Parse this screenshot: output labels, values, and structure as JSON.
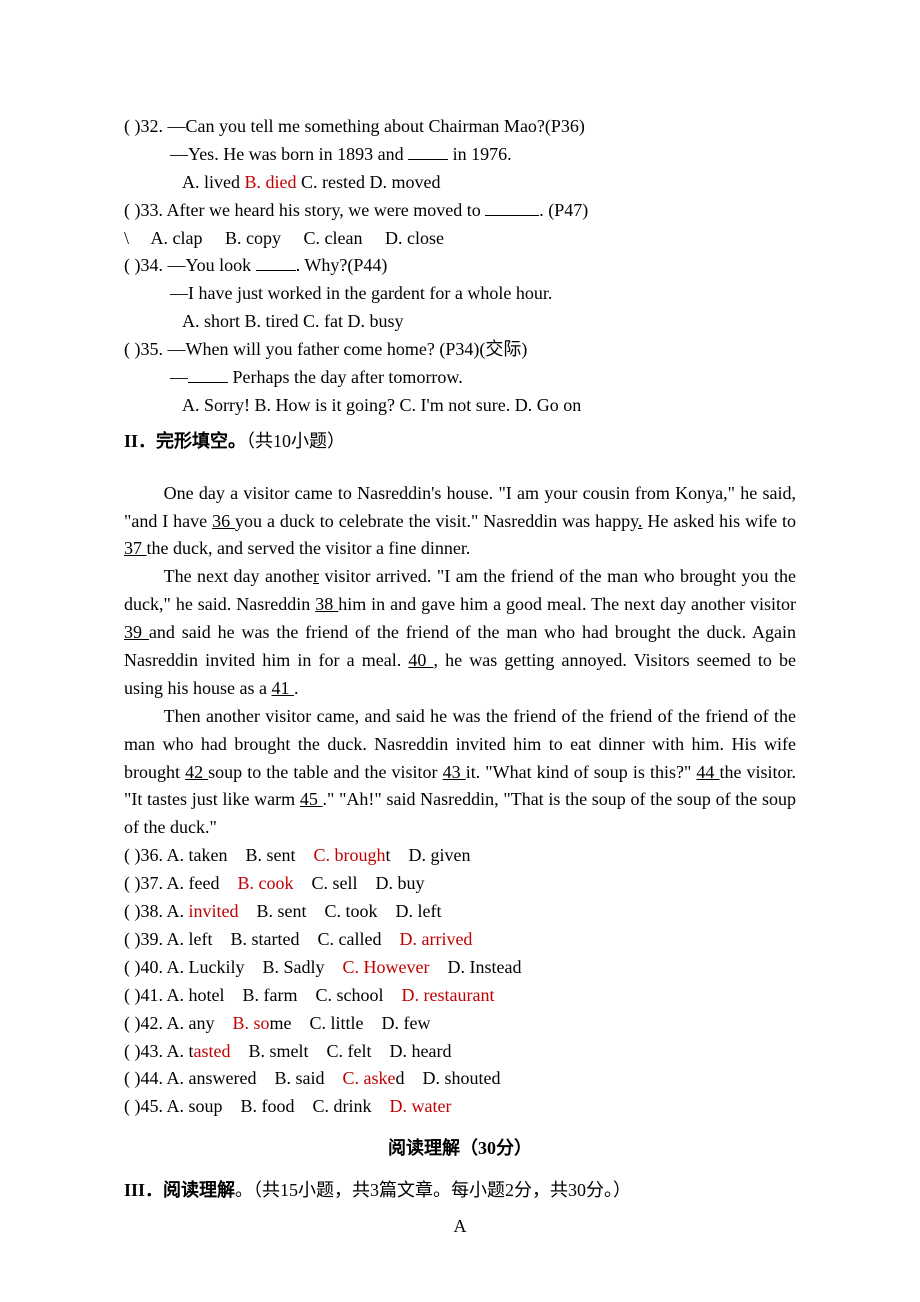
{
  "colors": {
    "text": "#000000",
    "answer": "#c00000",
    "background": "#ffffff"
  },
  "typography": {
    "body_font": "Times New Roman",
    "cjk_font": "SimSun",
    "body_size_pt": 13,
    "line_height": 1.55
  },
  "questions_block1": {
    "q32": {
      "prompt_line1": "(   )32. —Can you tell me something about Chairman Mao?(P36)",
      "prompt_line2_pre": "—Yes. He was born in 1893 and ",
      "prompt_line2_post": " in 1976.",
      "options": [
        {
          "label": "A. lived",
          "is_answer": false
        },
        {
          "label": "B. died",
          "is_answer": true
        },
        {
          "label": "C. rested",
          "is_answer": false
        },
        {
          "label": "D. moved",
          "is_answer": false
        }
      ]
    },
    "q33": {
      "prompt_pre": "(   )33. After we heard his story, we were moved to ",
      "prompt_post": ". (P47)",
      "prefix_ch": "\\",
      "options": [
        {
          "label": "A. clap",
          "is_answer": false
        },
        {
          "label": "B. copy",
          "is_answer": false
        },
        {
          "label": "C. clean",
          "is_answer": false
        },
        {
          "label": "D. close",
          "is_answer": false
        }
      ]
    },
    "q34": {
      "prompt_line1_pre": "(   )34. —You look ",
      "prompt_line1_post": ". Why?(P44)",
      "prompt_line2": "—I have just worked in the gardent for a whole hour.",
      "options": [
        {
          "label": "A. short",
          "is_answer": false
        },
        {
          "label": "B. tired",
          "is_answer": false
        },
        {
          "label": "C. fat",
          "is_answer": false
        },
        {
          "label": "D. busy",
          "is_answer": false
        }
      ]
    },
    "q35": {
      "prompt_line1": "(   )35. —When will you father come home? (P34)(交际)",
      "prompt_line2_pre": "—",
      "prompt_line2_post": " Perhaps the day after tomorrow.",
      "options": [
        {
          "label": "A. Sorry!",
          "is_answer": false
        },
        {
          "label": "B. How is it going?",
          "is_answer": false
        },
        {
          "label": "C. I'm not sure.",
          "is_answer": false
        },
        {
          "label": "D. Go on",
          "is_answer": false
        }
      ]
    }
  },
  "section2_title": "II．完形填空。",
  "section2_sub": "（共10小题）",
  "passage": {
    "p1_a": "One day a visitor came to Nasreddin's house. \"I am your cousin from Konya,\" he said, \"and I have ",
    "b36": " 36 ",
    "p1_b": " you a duck to celebrate the visit.\" Nasreddin was happy",
    "p1_c": " He asked his wife to ",
    "b37": " 37 ",
    "p1_d": " the duck, and served the visitor a fine dinner.",
    "p2_a": "The next day anothe",
    "p2_a2": " visitor arrived. \"I am the friend of the man who brought you the duck,\" he said. Nasreddin ",
    "b38": " 38 ",
    "p2_b": " him in and gave him a good meal. The next day another visitor ",
    "b39": " 39 ",
    "p2_c": " and said he was the friend of the friend of the man who had brought the duck. Again Nasreddin invited him in for a meal. ",
    "b40": " 40 ",
    "p2_d": ", he was getting annoyed. Visitors seemed to be using his house as a ",
    "b41": " 41 ",
    "p2_e": ".",
    "p3_a": "Then another visitor came, and said he was the friend of the friend of the friend of the man who had brought the duck. Nasreddin invited him to eat dinner with him. His wife brought ",
    "b42": " 42 ",
    "p3_b": " soup to the table and the visitor ",
    "b43": " 43 ",
    "p3_c": " it. \"What kind of soup is this?\" ",
    "b44": " 44 ",
    "p3_d": " the visitor. \"It tastes just like warm ",
    "b45": " 45 ",
    "p3_e": ".\" \"Ah!\" said Nasreddin, \"That is the soup of the soup of the soup of the duck.\""
  },
  "cloze_options": [
    {
      "num": "36",
      "A": "A. taken",
      "B": "B. sent",
      "C": "C. brough",
      "Ct": "t",
      "D": "D. given",
      "ans_letter": "C"
    },
    {
      "num": "37",
      "A": "A. feed",
      "B": "B. cook",
      "C": "C. sell",
      "D": "D. buy",
      "ans_letter": "B"
    },
    {
      "num": "38",
      "A": "A. ",
      "At": "invited",
      "B": "B. sent",
      "C": "C. took",
      "D": "D. left",
      "ans_letter": "A"
    },
    {
      "num": "39",
      "A": "A. left",
      "B": "B. started",
      "C": "C. called",
      "D": "D. arrived",
      "ans_letter": "D"
    },
    {
      "num": "40",
      "A": "A. Luckily",
      "B": "B. Sadly",
      "C": "C. However",
      "D": "D. Instead",
      "ans_letter": "C"
    },
    {
      "num": "41",
      "A": "A. hotel",
      "B": "B. farm",
      "C": "C. school",
      "D": "D. restaurant",
      "ans_letter": "D"
    },
    {
      "num": "42",
      "A": "A. any",
      "B": "B. so",
      "Bt": "me",
      "C": "C. little",
      "D": "D. few",
      "ans_letter": "B"
    },
    {
      "num": "43",
      "A": "A. t",
      "At": "asted",
      "B": "B. smelt",
      "C": "C. felt",
      "D": "D. heard",
      "ans_letter": "A"
    },
    {
      "num": "44",
      "A": "A. answered",
      "B": "B. said",
      "C": "C. aske",
      "Ct": "d",
      "D": "D. shouted",
      "ans_letter": "C"
    },
    {
      "num": "45",
      "A": "A. soup",
      "B": "B. food",
      "C": "C. drink",
      "D": "D. water",
      "ans_letter": "D"
    }
  ],
  "reading_heading": "阅读理解（30分）",
  "section3_title": "III．阅读理解",
  "section3_sub": "。（共15小题，共3篇文章。每小题2分，共30分。）",
  "passage_label": "A"
}
